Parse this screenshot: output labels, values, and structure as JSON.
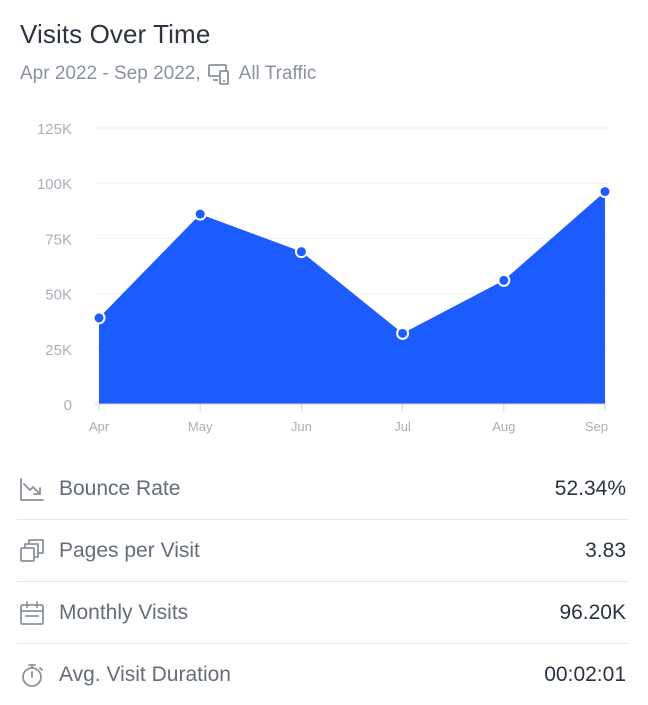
{
  "header": {
    "title": "Visits Over Time",
    "date_range": "Apr 2022 - Sep 2022,",
    "traffic_filter": "All Traffic",
    "device_icon": "devices-icon"
  },
  "colors": {
    "area_fill": "#1c5cff",
    "marker_stroke": "#ffffff",
    "grid": "#eceef1",
    "axis_text": "#a9afb8",
    "label_text": "#656d78",
    "value_text": "#2a3340"
  },
  "chart_data": {
    "type": "area",
    "title": "Visits Over Time",
    "xlabel": "",
    "ylabel": "",
    "categories": [
      "Apr",
      "May",
      "Jun",
      "Jul",
      "Aug",
      "Sep"
    ],
    "y_ticks": [
      {
        "value": 0,
        "label": "0"
      },
      {
        "value": 25000,
        "label": "25K"
      },
      {
        "value": 50000,
        "label": "50K"
      },
      {
        "value": 75000,
        "label": "75K"
      },
      {
        "value": 100000,
        "label": "100K"
      },
      {
        "value": 125000,
        "label": "125K"
      }
    ],
    "ylim": [
      0,
      125000
    ],
    "series": [
      {
        "values": [
          39000,
          86000,
          69000,
          32000,
          56000,
          96200
        ]
      }
    ],
    "grid": true,
    "legend": "none"
  },
  "metrics": [
    {
      "icon": "trend-down-icon",
      "label": "Bounce Rate",
      "value": "52.34%"
    },
    {
      "icon": "pages-icon",
      "label": "Pages per Visit",
      "value": "3.83"
    },
    {
      "icon": "calendar-icon",
      "label": "Monthly Visits",
      "value": "96.20K"
    },
    {
      "icon": "stopwatch-icon",
      "label": "Avg. Visit Duration",
      "value": "00:02:01"
    }
  ]
}
